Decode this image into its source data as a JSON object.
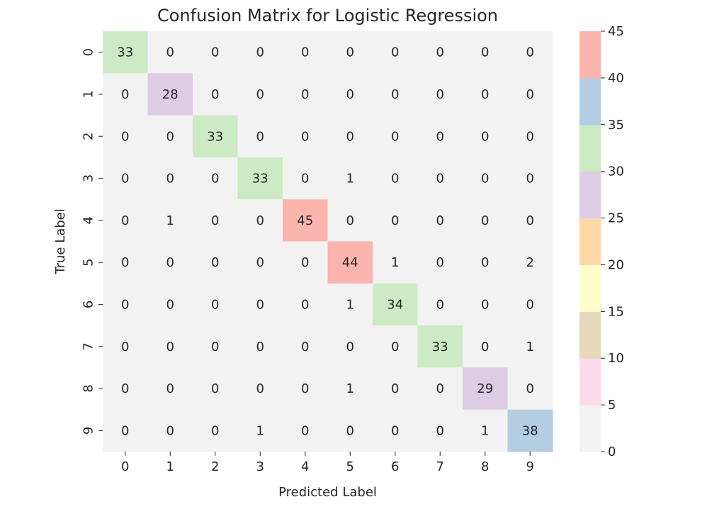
{
  "chart_data": {
    "type": "heatmap",
    "title": "Confusion Matrix for Logistic Regression",
    "xlabel": "Predicted Label",
    "ylabel": "True Label",
    "x_categories": [
      "0",
      "1",
      "2",
      "3",
      "4",
      "5",
      "6",
      "7",
      "8",
      "9"
    ],
    "y_categories": [
      "0",
      "1",
      "2",
      "3",
      "4",
      "5",
      "6",
      "7",
      "8",
      "9"
    ],
    "matrix": [
      [
        33,
        0,
        0,
        0,
        0,
        0,
        0,
        0,
        0,
        0
      ],
      [
        0,
        28,
        0,
        0,
        0,
        0,
        0,
        0,
        0,
        0
      ],
      [
        0,
        0,
        33,
        0,
        0,
        0,
        0,
        0,
        0,
        0
      ],
      [
        0,
        0,
        0,
        33,
        0,
        1,
        0,
        0,
        0,
        0
      ],
      [
        0,
        1,
        0,
        0,
        45,
        0,
        0,
        0,
        0,
        0
      ],
      [
        0,
        0,
        0,
        0,
        0,
        44,
        1,
        0,
        0,
        2
      ],
      [
        0,
        0,
        0,
        0,
        0,
        1,
        34,
        0,
        0,
        0
      ],
      [
        0,
        0,
        0,
        0,
        0,
        0,
        0,
        33,
        0,
        1
      ],
      [
        0,
        0,
        0,
        0,
        0,
        1,
        0,
        0,
        29,
        0
      ],
      [
        0,
        0,
        0,
        1,
        0,
        0,
        0,
        0,
        1,
        38
      ]
    ],
    "colorbar": {
      "vmin": 0,
      "vmax": 45,
      "ticks": [
        0,
        5,
        10,
        15,
        20,
        25,
        30,
        35,
        40,
        45
      ],
      "bands": [
        "#f2f2f2",
        "#fddaec",
        "#e5d8bd",
        "#ffffcc",
        "#fed9a6",
        "#decbe4",
        "#ccebc5",
        "#b3cde3",
        "#fbb4ae"
      ]
    }
  }
}
